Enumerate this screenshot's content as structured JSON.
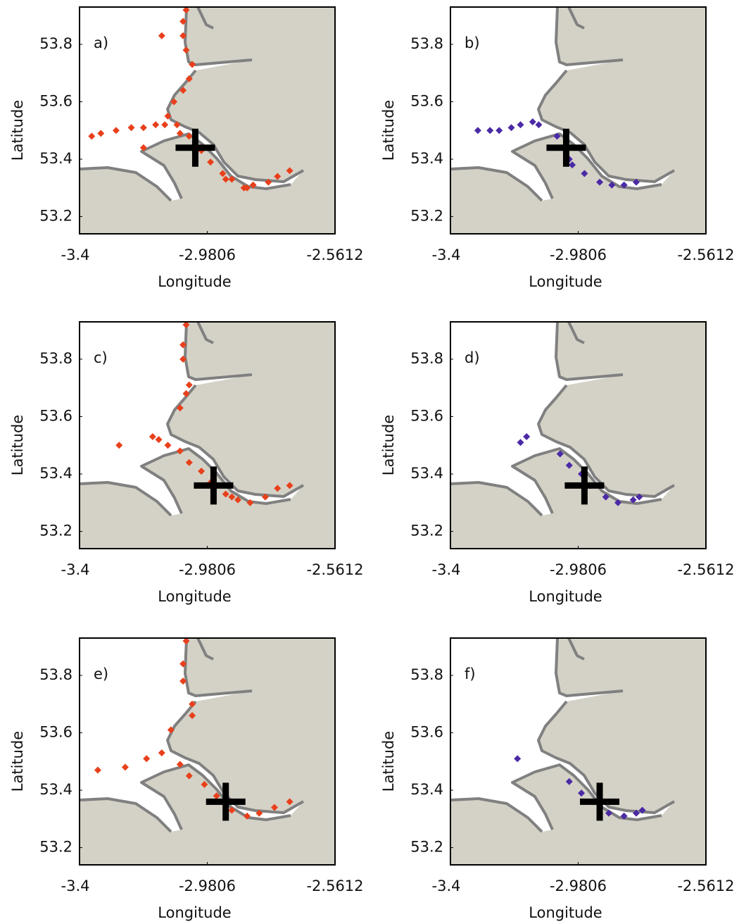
{
  "chart_data": [
    {
      "type": "scatter",
      "label": "a)",
      "xlabel": "Longitude",
      "ylabel": "Latitude",
      "xlim": [
        -3.4,
        -2.5612
      ],
      "ylim": [
        53.14,
        53.93
      ],
      "xticks": [
        -3.4,
        -2.9806,
        -2.5612
      ],
      "yticks": [
        53.2,
        53.4,
        53.6,
        53.8
      ],
      "color": "#e8401c",
      "x": [
        -3.05,
        -3.06,
        -3.06,
        -3.05,
        -3.13,
        -3.03,
        -3.04,
        -3.06,
        -3.09,
        -3.11,
        -3.36,
        -3.33,
        -3.28,
        -3.23,
        -3.19,
        -3.15,
        -3.12,
        -3.08,
        -3.19,
        -3.07,
        -3.04,
        -3.0,
        -2.97,
        -2.93,
        -2.9,
        -2.86,
        -2.83,
        -2.78,
        -2.75,
        -2.71,
        -2.92,
        -2.85
      ],
      "y": [
        53.92,
        53.88,
        53.83,
        53.78,
        53.83,
        53.73,
        53.68,
        53.64,
        53.6,
        53.55,
        53.48,
        53.49,
        53.5,
        53.51,
        53.51,
        53.52,
        53.52,
        53.52,
        53.44,
        53.49,
        53.48,
        53.43,
        53.39,
        53.35,
        53.33,
        53.3,
        53.31,
        53.32,
        53.34,
        53.36,
        53.33,
        53.3
      ],
      "cross": {
        "x": -3.02,
        "y": 53.44
      }
    },
    {
      "type": "scatter",
      "label": "b)",
      "xlabel": "Longitude",
      "ylabel": "Latitude",
      "xlim": [
        -3.4,
        -2.5612
      ],
      "ylim": [
        53.14,
        53.93
      ],
      "xticks": [
        -3.4,
        -2.9806,
        -2.5612
      ],
      "yticks": [
        53.2,
        53.4,
        53.6,
        53.8
      ],
      "color": "#4b2aa6",
      "x": [
        -3.31,
        -3.27,
        -3.24,
        -3.2,
        -3.17,
        -3.13,
        -3.11,
        -3.05,
        -3.03,
        -3.01,
        -3.0,
        -2.96,
        -2.91,
        -2.87,
        -2.83,
        -2.79
      ],
      "y": [
        53.5,
        53.5,
        53.5,
        53.51,
        53.52,
        53.53,
        53.52,
        53.48,
        53.44,
        53.4,
        53.38,
        53.35,
        53.32,
        53.31,
        53.31,
        53.32
      ],
      "cross": {
        "x": -3.02,
        "y": 53.44
      }
    },
    {
      "type": "scatter",
      "label": "c)",
      "xlabel": "Longitude",
      "ylabel": "Latitude",
      "xlim": [
        -3.4,
        -2.5612
      ],
      "ylim": [
        53.14,
        53.93
      ],
      "xticks": [
        -3.4,
        -2.9806,
        -2.5612
      ],
      "yticks": [
        53.2,
        53.4,
        53.6,
        53.8
      ],
      "color": "#e8401c",
      "x": [
        -3.05,
        -3.06,
        -3.06,
        -3.04,
        -3.05,
        -3.07,
        -3.27,
        -3.16,
        -3.14,
        -3.11,
        -3.07,
        -3.04,
        -3.0,
        -2.97,
        -2.92,
        -2.88,
        -2.84,
        -2.79,
        -2.75,
        -2.71,
        -2.9
      ],
      "y": [
        53.92,
        53.85,
        53.8,
        53.71,
        53.68,
        53.63,
        53.5,
        53.53,
        53.52,
        53.5,
        53.48,
        53.44,
        53.41,
        53.37,
        53.33,
        53.31,
        53.3,
        53.32,
        53.35,
        53.36,
        53.32
      ],
      "cross": {
        "x": -2.96,
        "y": 53.36
      }
    },
    {
      "type": "scatter",
      "label": "d)",
      "xlabel": "Longitude",
      "ylabel": "Latitude",
      "xlim": [
        -3.4,
        -2.5612
      ],
      "ylim": [
        53.14,
        53.93
      ],
      "xticks": [
        -3.4,
        -2.9806,
        -2.5612
      ],
      "yticks": [
        53.2,
        53.4,
        53.6,
        53.8
      ],
      "color": "#4b2aa6",
      "x": [
        -3.17,
        -3.15,
        -3.04,
        -3.01,
        -2.97,
        -2.94,
        -2.89,
        -2.85,
        -2.8,
        -2.78
      ],
      "y": [
        53.51,
        53.53,
        53.47,
        53.43,
        53.4,
        53.36,
        53.32,
        53.3,
        53.31,
        53.32
      ],
      "cross": {
        "x": -2.96,
        "y": 53.36
      }
    },
    {
      "type": "scatter",
      "label": "e)",
      "xlabel": "Longitude",
      "ylabel": "Latitude",
      "xlim": [
        -3.4,
        -2.5612
      ],
      "ylim": [
        53.14,
        53.93
      ],
      "xticks": [
        -3.4,
        -2.9806,
        -2.5612
      ],
      "yticks": [
        53.2,
        53.4,
        53.6,
        53.8
      ],
      "color": "#e8401c",
      "x": [
        -3.05,
        -3.06,
        -3.06,
        -3.03,
        -3.03,
        -3.1,
        -3.13,
        -3.18,
        -3.25,
        -3.34,
        -3.07,
        -3.04,
        -2.99,
        -2.95,
        -2.9,
        -2.85,
        -2.81,
        -2.76,
        -2.71,
        -2.92
      ],
      "y": [
        53.92,
        53.84,
        53.78,
        53.7,
        53.66,
        53.61,
        53.53,
        53.51,
        53.48,
        53.47,
        53.49,
        53.45,
        53.42,
        53.38,
        53.33,
        53.31,
        53.32,
        53.34,
        53.36,
        53.34
      ],
      "cross": {
        "x": -2.92,
        "y": 53.36
      }
    },
    {
      "type": "scatter",
      "label": "f)",
      "xlabel": "Longitude",
      "ylabel": "Latitude",
      "xlim": [
        -3.4,
        -2.5612
      ],
      "ylim": [
        53.14,
        53.93
      ],
      "xticks": [
        -3.4,
        -2.9806,
        -2.5612
      ],
      "yticks": [
        53.2,
        53.4,
        53.6,
        53.8
      ],
      "color": "#4b2aa6",
      "x": [
        -3.18,
        -3.01,
        -2.97,
        -2.93,
        -2.88,
        -2.83,
        -2.79,
        -2.77
      ],
      "y": [
        53.51,
        53.43,
        53.39,
        53.36,
        53.32,
        53.31,
        53.32,
        53.33
      ],
      "cross": {
        "x": -2.91,
        "y": 53.36
      }
    }
  ]
}
